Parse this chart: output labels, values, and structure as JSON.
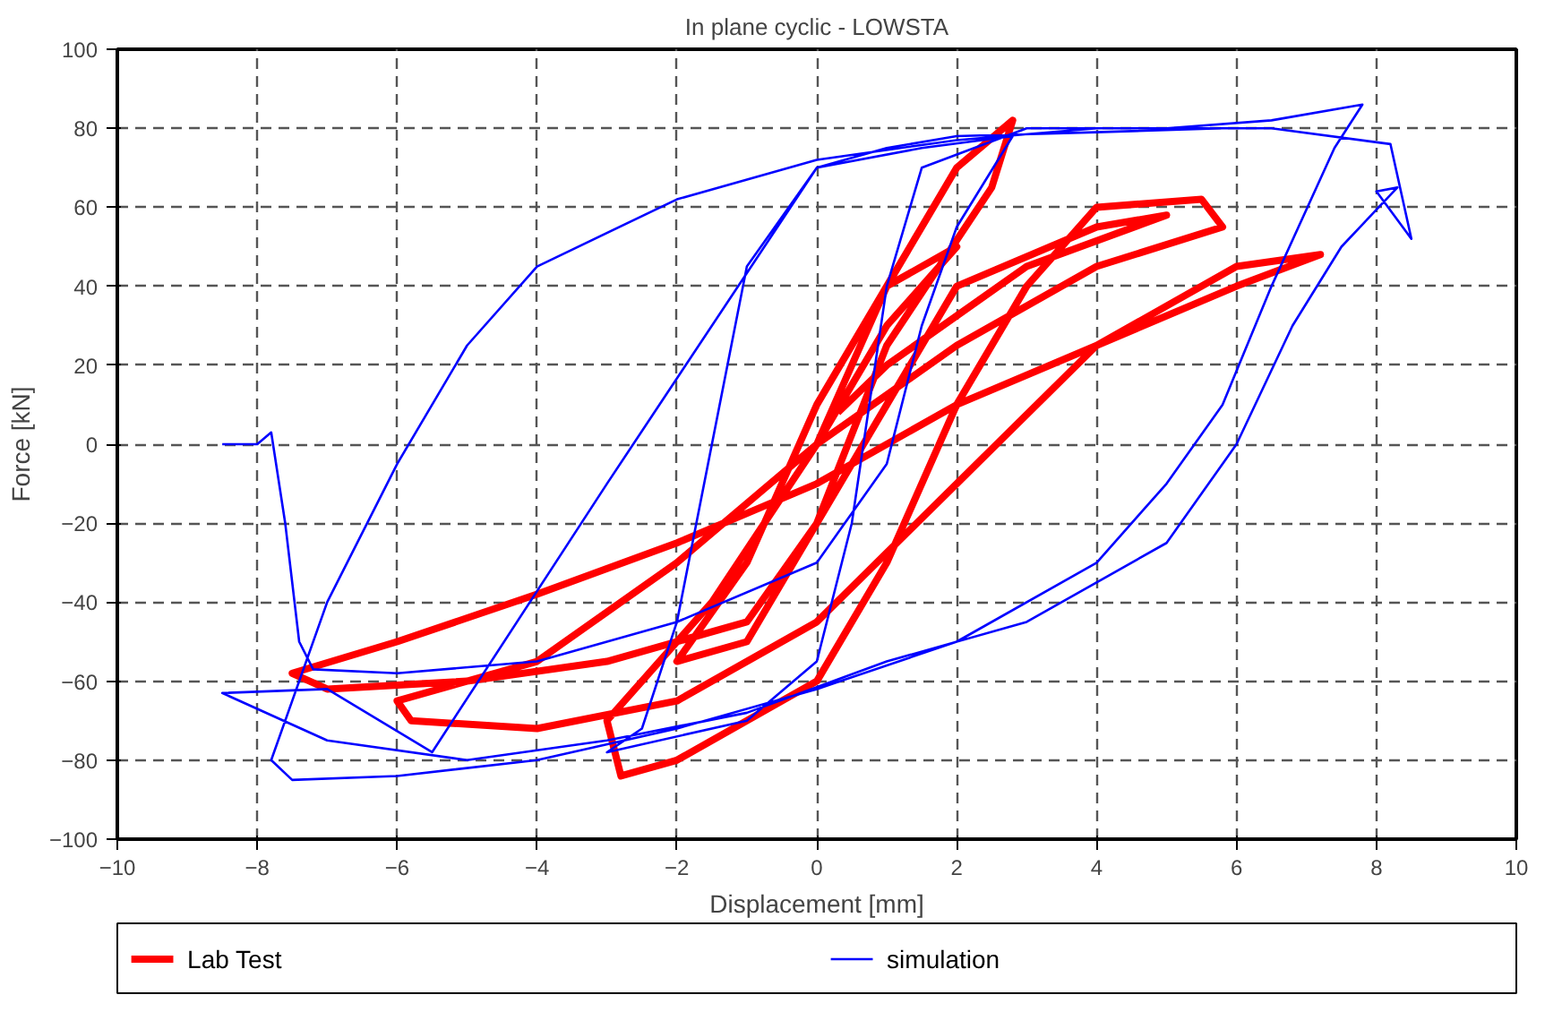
{
  "chart_data": {
    "type": "line",
    "title": "In plane cyclic - LOWSTA",
    "xlabel": "Displacement [mm]",
    "ylabel": "Force [kN]",
    "xlim": [
      -10,
      10
    ],
    "xticks": [
      -10,
      -8,
      -6,
      -4,
      -2,
      0,
      2,
      4,
      6,
      8,
      10
    ],
    "ylim": [
      -100,
      100
    ],
    "yticks": [
      -100,
      -80,
      -60,
      -40,
      -20,
      0,
      20,
      40,
      60,
      80,
      100
    ],
    "grid": true,
    "legend": "bottom",
    "line_style": "solid",
    "marker": "none",
    "series": [
      {
        "name": "Lab Test",
        "color": "#ff0000",
        "x": [
          0,
          1,
          2,
          1,
          0,
          -1,
          -2,
          -1,
          0,
          1,
          2.5,
          2.8,
          2,
          1,
          0,
          -1.5,
          -3,
          -2.8,
          -2,
          0,
          1,
          2,
          3,
          4,
          5.5,
          5.8,
          4,
          2,
          0,
          -2,
          -4,
          -6,
          -5.8,
          -4,
          -2,
          0,
          2,
          4,
          6,
          7.2,
          6,
          4,
          2,
          0,
          -2,
          -4,
          -6,
          -7.5,
          -7,
          -5,
          -3,
          -1,
          0,
          1,
          2,
          4,
          5,
          3,
          1,
          0.3
        ],
        "values": [
          0,
          30,
          50,
          40,
          10,
          -30,
          -55,
          -50,
          -20,
          25,
          65,
          82,
          70,
          40,
          0,
          -40,
          -70,
          -84,
          -80,
          -60,
          -30,
          10,
          40,
          60,
          62,
          55,
          45,
          25,
          0,
          -30,
          -55,
          -65,
          -70,
          -72,
          -65,
          -45,
          -10,
          25,
          45,
          48,
          40,
          25,
          10,
          -10,
          -25,
          -38,
          -50,
          -58,
          -62,
          -60,
          -55,
          -45,
          -20,
          10,
          40,
          55,
          58,
          45,
          20,
          8
        ]
      },
      {
        "name": "simulation",
        "color": "#0000ff",
        "x": [
          -8.5,
          -8,
          -7.8,
          -7.6,
          -7.4,
          -7.2,
          -6,
          -4,
          -2,
          0,
          1,
          1.5,
          2,
          2.8,
          1.5,
          0,
          -1,
          -1.5,
          -2,
          -2.5,
          -3,
          -1,
          0,
          0.5,
          1,
          1.5,
          3,
          5,
          6.5,
          7.8,
          7.4,
          6.5,
          5.8,
          5,
          4,
          2,
          0,
          -2,
          -4,
          -6,
          -7.5,
          -7.8,
          -7.5,
          -7,
          -6,
          -5,
          -4,
          -2,
          0,
          2,
          4,
          6.5,
          8.2,
          8.5,
          8,
          8.3,
          7.5,
          6.8,
          6,
          5,
          3,
          1,
          -1,
          -3,
          -5,
          -7,
          -8.5,
          -7,
          -5.5,
          -3,
          0,
          1,
          2,
          4,
          5.8
        ],
        "values": [
          0,
          0,
          3,
          -20,
          -50,
          -57,
          -58,
          -55,
          -45,
          -30,
          -5,
          30,
          55,
          78,
          75,
          70,
          45,
          0,
          -45,
          -72,
          -78,
          -70,
          -55,
          -20,
          40,
          70,
          80,
          80,
          82,
          86,
          75,
          40,
          10,
          -10,
          -30,
          -50,
          -62,
          -72,
          -80,
          -84,
          -85,
          -80,
          -65,
          -40,
          -5,
          25,
          45,
          62,
          72,
          77,
          80,
          80,
          76,
          52,
          64,
          65,
          50,
          30,
          0,
          -25,
          -45,
          -55,
          -68,
          -75,
          -80,
          -75,
          -63,
          -62,
          -78,
          -10,
          70,
          75,
          78,
          79,
          80
        ]
      }
    ]
  }
}
